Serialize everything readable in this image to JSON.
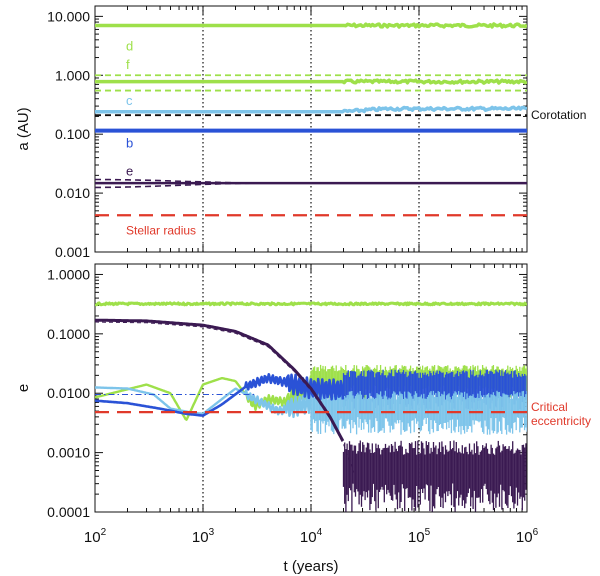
{
  "figure": {
    "xlabel": "t (years)",
    "xlim": [
      100,
      1000000
    ],
    "x_ticks": [
      {
        "base": "10",
        "exp": "2",
        "value": 100
      },
      {
        "base": "10",
        "exp": "3",
        "value": 1000
      },
      {
        "base": "10",
        "exp": "4",
        "value": 10000
      },
      {
        "base": "10",
        "exp": "5",
        "value": 100000
      },
      {
        "base": "10",
        "exp": "6",
        "value": 1000000
      }
    ],
    "vlines_x": [
      1000,
      10000,
      100000
    ]
  },
  "chart_data": [
    {
      "type": "line",
      "panel": "top",
      "ylabel": "a (AU)",
      "yscale": "log",
      "xscale": "log",
      "ylim": [
        0.001,
        15
      ],
      "y_ticks": [
        {
          "label": "10.000",
          "value": 10
        },
        {
          "label": "1.000",
          "value": 1
        },
        {
          "label": "0.100",
          "value": 0.1
        },
        {
          "label": "0.010",
          "value": 0.01
        },
        {
          "label": "0.001",
          "value": 0.001
        }
      ],
      "series": [
        {
          "name": "d",
          "color": "#9ee04a",
          "value": 7.0,
          "width": 3.5
        },
        {
          "name": "f",
          "color": "#9ee04a",
          "value": 0.78,
          "width": 3.5
        },
        {
          "name": "c",
          "color": "#7dc4ea",
          "value": 0.24,
          "width": 3.5,
          "rise": [
            0.24,
            0.27
          ],
          "rise_from_x": 20000
        },
        {
          "name": "b",
          "color": "#2a52d6",
          "value": 0.115,
          "width": 4
        },
        {
          "name": "e",
          "color": "#3b1a52",
          "value": 0.0148,
          "width": 2.5
        }
      ],
      "dashed_lines": [
        {
          "color": "#9ee04a",
          "value": 1.0
        },
        {
          "color": "#9ee04a",
          "value": 0.55
        },
        {
          "color": "#111111",
          "value": 0.21
        },
        {
          "color": "#3b1a52",
          "from": 0.017,
          "to": 0.0148,
          "converge_x": 4000
        },
        {
          "color": "#3b1a52",
          "from": 0.0125,
          "to": 0.0148,
          "converge_x": 4000
        }
      ],
      "stellar_radius": {
        "label": "Stellar radius",
        "value": 0.0042,
        "color": "#e0392a"
      },
      "annotations": {
        "corotation": "Corotation"
      },
      "labels": [
        {
          "text": "d",
          "color": "#9ee04a",
          "value": 3.2
        },
        {
          "text": "f",
          "color": "#9ee04a",
          "value": 1.55
        },
        {
          "text": "c",
          "color": "#7dc4ea",
          "value": 0.38
        },
        {
          "text": "b",
          "color": "#2a52d6",
          "value": 0.072
        },
        {
          "text": "e",
          "color": "#3b1a52",
          "value": 0.024
        }
      ]
    },
    {
      "type": "line",
      "panel": "bottom",
      "ylabel": "e",
      "yscale": "log",
      "xscale": "log",
      "ylim": [
        0.0001,
        1.5
      ],
      "y_ticks": [
        {
          "label": "1.0000",
          "value": 1
        },
        {
          "label": "0.1000",
          "value": 0.1
        },
        {
          "label": "0.0100",
          "value": 0.01
        },
        {
          "label": "0.0010",
          "value": 0.001
        },
        {
          "label": "0.0001",
          "value": 0.0001
        }
      ],
      "critical_eccentricity": {
        "label_line1": "Critical",
        "label_line2": "eccentricity",
        "value": 0.0048,
        "color": "#e0392a"
      },
      "series": [
        {
          "name": "d",
          "color": "#9ee04a",
          "points": [
            [
              100,
              0.32
            ],
            [
              1000,
              0.32
            ],
            [
              10000,
              0.32
            ],
            [
              100000,
              0.32
            ],
            [
              1000000,
              0.32
            ]
          ]
        },
        {
          "name": "e",
          "color": "#3b1a52",
          "points": [
            [
              100,
              0.17
            ],
            [
              300,
              0.165
            ],
            [
              1000,
              0.14
            ],
            [
              2000,
              0.11
            ],
            [
              4000,
              0.065
            ],
            [
              7000,
              0.025
            ],
            [
              10000,
              0.012
            ],
            [
              15000,
              0.004
            ],
            [
              20000,
              0.0015
            ],
            [
              25000,
              0.0005
            ],
            [
              40000,
              0.0004
            ],
            [
              100000,
              0.0004
            ],
            [
              1000000,
              0.0004
            ]
          ],
          "band_from_x": 20000,
          "band": [
            0.0001,
            0.0016
          ]
        },
        {
          "name": "f",
          "color": "#9ee04a",
          "points": [
            [
              100,
              0.0085
            ],
            [
              300,
              0.014
            ],
            [
              500,
              0.01
            ],
            [
              700,
              0.0035
            ],
            [
              1000,
              0.014
            ],
            [
              1500,
              0.018
            ],
            [
              2000,
              0.016
            ],
            [
              3000,
              0.006
            ],
            [
              4000,
              0.008
            ],
            [
              6000,
              0.007
            ],
            [
              10000,
              0.014
            ],
            [
              20000,
              0.018
            ],
            [
              50000,
              0.022
            ],
            [
              100000,
              0.022
            ],
            [
              1000000,
              0.022
            ]
          ],
          "band_from_x": 10000,
          "band": [
            0.008,
            0.03
          ]
        },
        {
          "name": "c",
          "color": "#7dc4ea",
          "points": [
            [
              100,
              0.0125
            ],
            [
              200,
              0.012
            ],
            [
              350,
              0.0095
            ],
            [
              500,
              0.0055
            ],
            [
              800,
              0.0047
            ],
            [
              1000,
              0.0045
            ],
            [
              1500,
              0.008
            ],
            [
              2000,
              0.012
            ],
            [
              3000,
              0.008
            ],
            [
              5000,
              0.005
            ],
            [
              10000,
              0.007
            ],
            [
              20000,
              0.006
            ],
            [
              50000,
              0.005
            ],
            [
              100000,
              0.005
            ],
            [
              1000000,
              0.005
            ]
          ],
          "band_from_x": 10000,
          "band": [
            0.002,
            0.011
          ]
        },
        {
          "name": "b",
          "color": "#2a52d6",
          "points": [
            [
              100,
              0.0075
            ],
            [
              200,
              0.0068
            ],
            [
              400,
              0.0055
            ],
            [
              700,
              0.0045
            ],
            [
              1000,
              0.0042
            ],
            [
              1500,
              0.0065
            ],
            [
              2500,
              0.013
            ],
            [
              4000,
              0.018
            ],
            [
              6000,
              0.015
            ],
            [
              10000,
              0.012
            ],
            [
              30000,
              0.011
            ],
            [
              100000,
              0.011
            ],
            [
              1000000,
              0.011
            ]
          ],
          "band_from_x": 20000,
          "band": [
            0.005,
            0.025
          ]
        }
      ]
    }
  ]
}
